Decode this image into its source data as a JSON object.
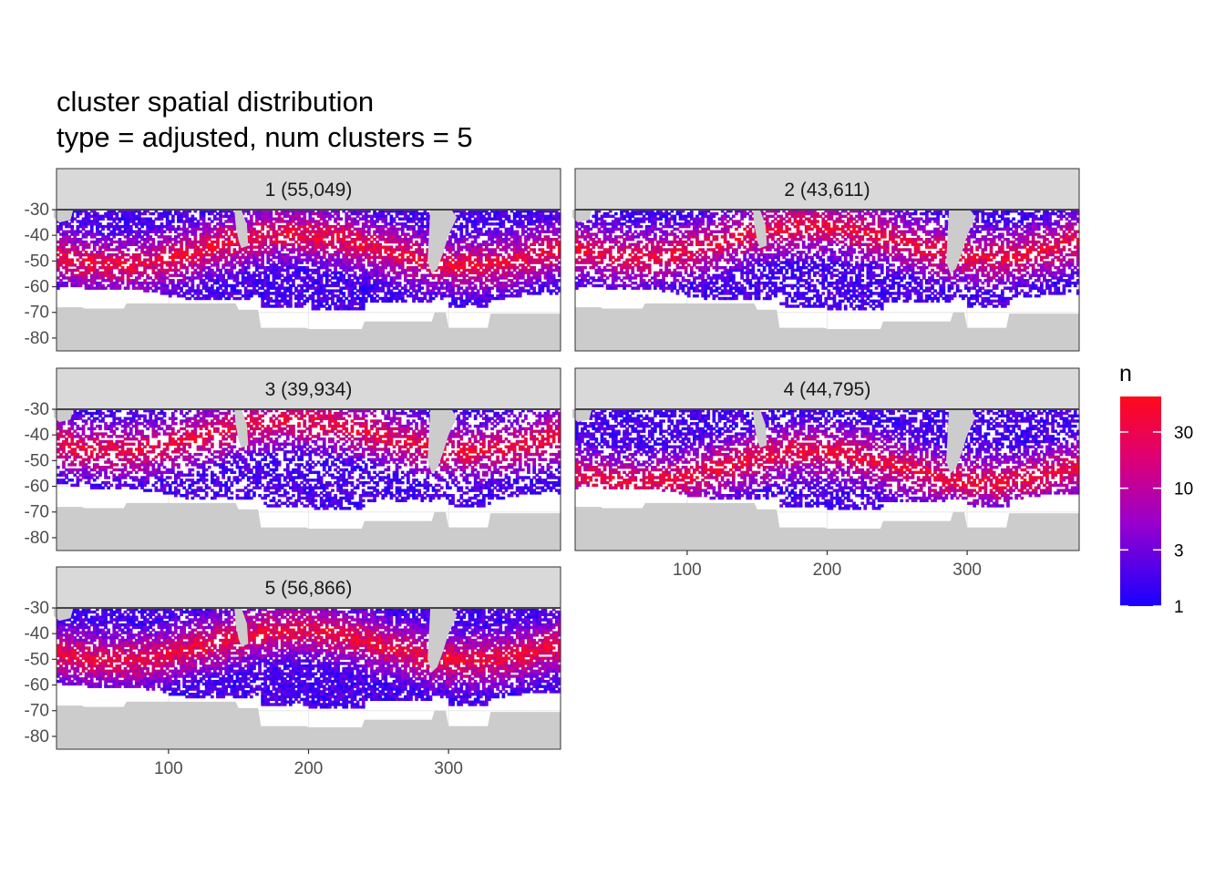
{
  "title_line1": "cluster spatial distribution",
  "title_line2": "type = adjusted, num clusters = 5",
  "colors": {
    "low": "#1a00ff",
    "mid": "#c200c2",
    "high": "#ff0a1a",
    "land": "#cccccc",
    "strip_bg": "#d9d9d9",
    "panel_border": "#333333",
    "grid": "#ebebeb"
  },
  "chart_data": {
    "type": "heatmap",
    "facet_variable": "cluster",
    "x": {
      "ticks": [
        100,
        200,
        300
      ],
      "range": [
        20,
        380
      ]
    },
    "y": {
      "ticks": [
        -30,
        -40,
        -50,
        -60,
        -70,
        -80
      ],
      "range": [
        -85,
        -30
      ]
    },
    "legend": {
      "title": "n",
      "scale": "log",
      "range": [
        1,
        60
      ],
      "ticks": [
        1,
        3,
        10,
        30
      ],
      "position": "right"
    },
    "facets": [
      {
        "label": "1 (55,049)",
        "cluster": 1,
        "count": 55049
      },
      {
        "label": "2 (43,611)",
        "cluster": 2,
        "count": 43611
      },
      {
        "label": "3 (39,934)",
        "cluster": 3,
        "count": 39934
      },
      {
        "label": "4 (44,795)",
        "cluster": 4,
        "count": 44795
      },
      {
        "label": "5 (56,866)",
        "cluster": 5,
        "count": 56866
      }
    ]
  }
}
